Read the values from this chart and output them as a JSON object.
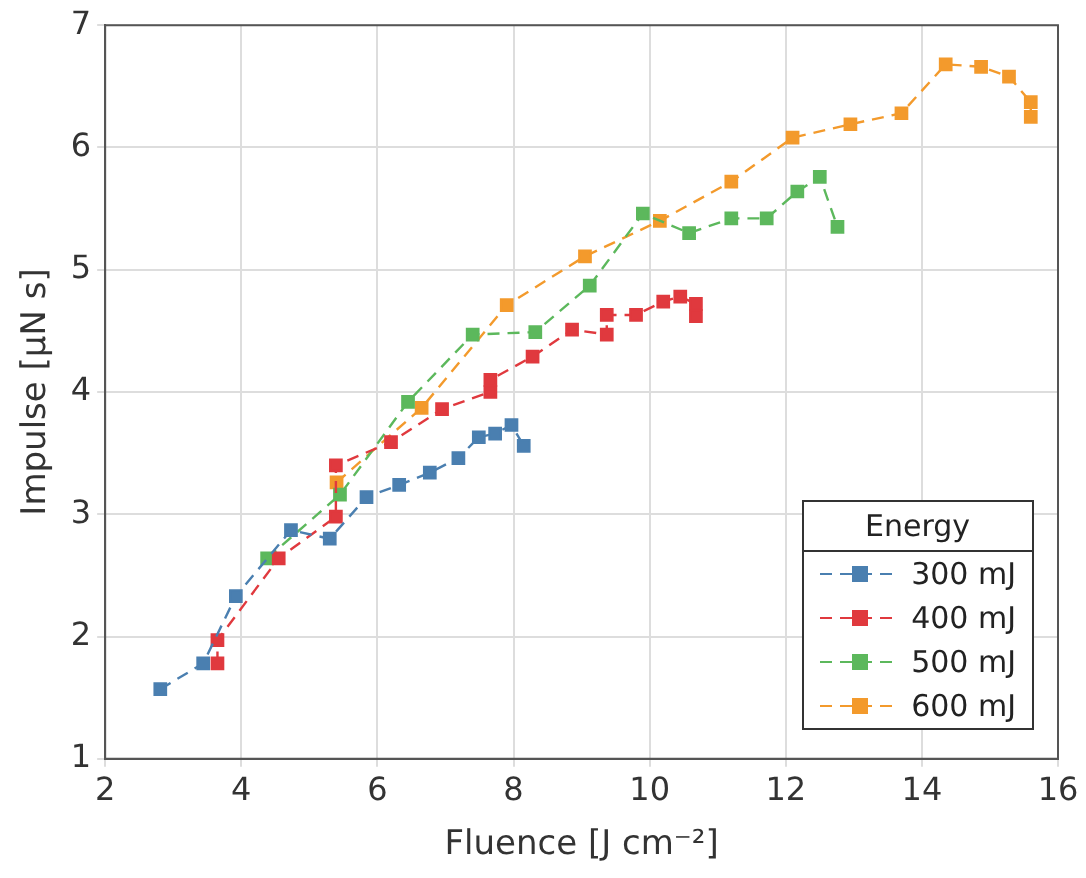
{
  "chart_data": {
    "type": "line",
    "xlabel": "Fluence [J cm⁻²]",
    "ylabel": "Impulse [μN s]",
    "legend_title": "Energy",
    "legend": "bottom right",
    "grid": true,
    "marker": "square",
    "line_style": "dashed",
    "xlim": [
      2,
      16
    ],
    "xticks": [
      2,
      4,
      6,
      8,
      10,
      12,
      14,
      16
    ],
    "ylim": [
      1,
      7
    ],
    "yticks": [
      1,
      2,
      3,
      4,
      5,
      6,
      7
    ],
    "series": [
      {
        "name": "300 mJ",
        "color": "#4a7fb0",
        "x": [
          2.81,
          3.44,
          3.92,
          4.73,
          5.3,
          5.84,
          6.32,
          6.77,
          7.19,
          7.49,
          7.73,
          7.97,
          8.15
        ],
        "values": [
          1.57,
          1.78,
          2.33,
          2.87,
          2.8,
          3.14,
          3.24,
          3.34,
          3.46,
          3.63,
          3.66,
          3.73,
          3.56
        ]
      },
      {
        "name": "400 mJ",
        "color": "#e0393e",
        "x": [
          3.65,
          3.65,
          4.55,
          5.39,
          5.39,
          6.2,
          6.95,
          7.66,
          7.66,
          8.28,
          8.86,
          9.37,
          9.37,
          9.8,
          10.2,
          10.45,
          10.68,
          10.68
        ],
        "values": [
          1.78,
          1.97,
          2.64,
          2.98,
          3.4,
          3.59,
          3.86,
          4.0,
          4.1,
          4.29,
          4.51,
          4.47,
          4.63,
          4.63,
          4.74,
          4.78,
          4.72,
          4.62
        ]
      },
      {
        "name": "500 mJ",
        "color": "#5cb85c",
        "x": [
          4.38,
          5.45,
          6.45,
          7.4,
          8.32,
          9.12,
          9.9,
          10.58,
          11.2,
          11.72,
          12.17,
          12.5,
          12.76
        ],
        "values": [
          2.64,
          3.16,
          3.92,
          4.47,
          4.49,
          4.87,
          5.46,
          5.3,
          5.42,
          5.42,
          5.64,
          5.76,
          5.35
        ]
      },
      {
        "name": "600 mJ",
        "color": "#f39a2c",
        "x": [
          5.4,
          6.65,
          7.9,
          9.05,
          10.15,
          11.2,
          12.1,
          12.95,
          13.7,
          14.35,
          14.87,
          15.28,
          15.6,
          15.6
        ],
        "values": [
          3.26,
          3.87,
          4.71,
          5.11,
          5.4,
          5.72,
          6.08,
          6.19,
          6.28,
          6.68,
          6.66,
          6.58,
          6.37,
          6.25
        ]
      }
    ]
  }
}
